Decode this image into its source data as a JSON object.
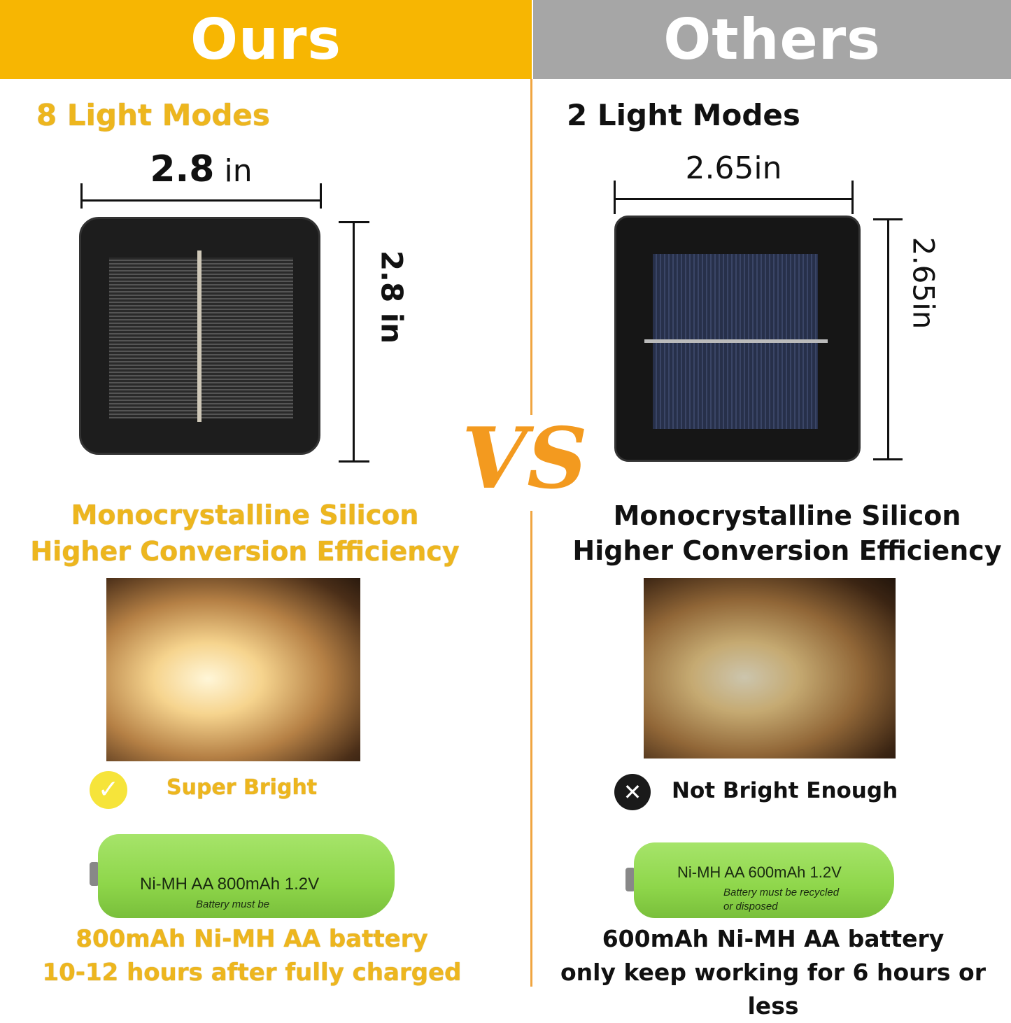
{
  "header": {
    "ours": "Ours",
    "others": "Others"
  },
  "colors": {
    "ours_header": "#F7B602",
    "others_header": "#A6A6A6",
    "gold_text": "#EDB61E",
    "divider": "#F0A540",
    "vs": "#F39A1F"
  },
  "vs": "VS",
  "ours": {
    "modes": "8 Light Modes",
    "width_label_num": "2.8",
    "width_label_unit": "in",
    "height_label": "2.8 in",
    "material_line1": "Monocrystalline Silicon",
    "material_line2": "Higher Conversion Efficiency",
    "brightness": "Super Bright",
    "brightness_icon": "check-circle-icon",
    "battery_print": "Ni-MH  AA  800mAh 1.2V",
    "battery_note": "Battery must be",
    "battery_line1": "800mAh Ni-MH AA battery",
    "battery_line2": "10-12 hours after fully charged"
  },
  "others": {
    "modes": "2 Light Modes",
    "width_label": "2.65in",
    "height_label": "2.65in",
    "material_line1": "Monocrystalline Silicon",
    "material_line2": "Higher Conversion Efficiency",
    "brightness": "Not Bright Enough",
    "brightness_icon": "x-circle-icon",
    "battery_print": "Ni-MH  AA 600mAh 1.2V",
    "battery_note": "Battery must be recycled or disposed",
    "battery_line1": "600mAh Ni-MH AA battery",
    "battery_line2": "only keep working for 6 hours or less"
  }
}
